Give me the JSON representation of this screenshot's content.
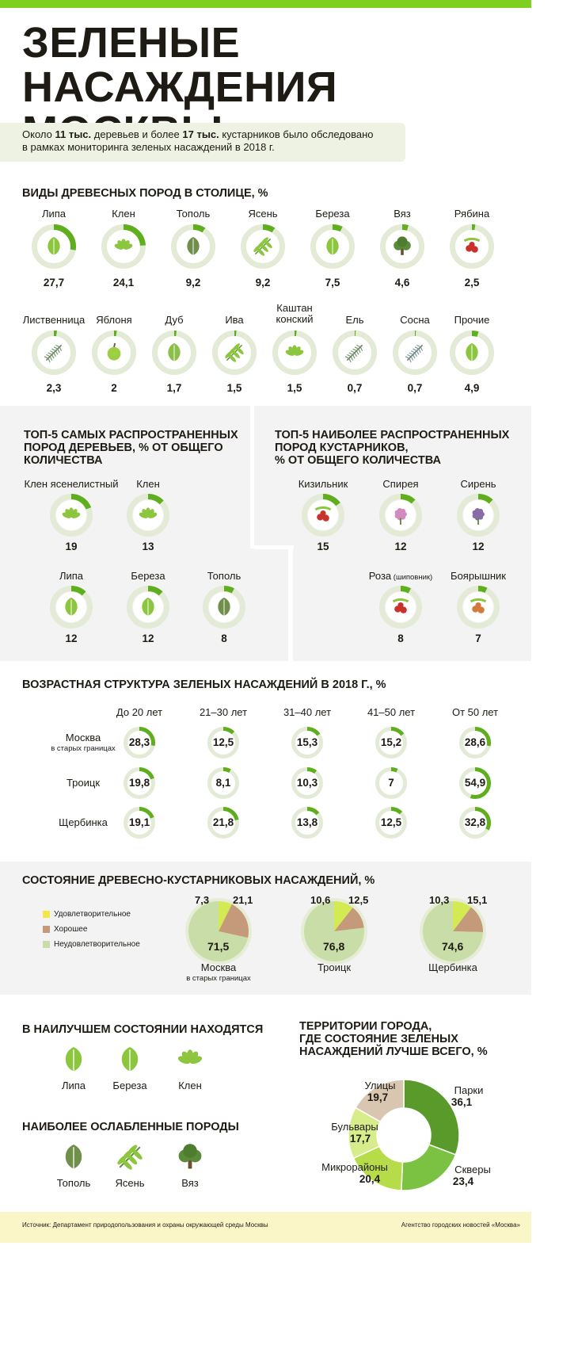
{
  "title": "ЗЕЛЕНЫЕ НАСАЖДЕНИЯ МОСКВЫ",
  "intro": {
    "p1": "Около ",
    "b1": "11 тыс.",
    "p2": " деревьев и более ",
    "b2": "17 тыс.",
    "p3": " кустарников было обследовано",
    "line2": "в рамках мониторинга зеленых насаждений в 2018 г."
  },
  "colors": {
    "accent": "#6fbf1f",
    "ring": "#dfe8cf",
    "leaf": "#8cc63f",
    "dark_leaf": "#5a8a3a",
    "satisfactory": "#d3ea52",
    "good": "#c49a7a",
    "unsat": "#c9dda8"
  },
  "chart_data": [
    {
      "type": "donut",
      "title": "ВИДЫ ДРЕВЕСНЫХ ПОРОД В СТОЛИЦЕ, %",
      "categories": [
        "Липа",
        "Клен",
        "Тополь",
        "Ясень",
        "Береза",
        "Вяз",
        "Рябина",
        "Лиственница",
        "Яблоня",
        "Дуб",
        "Ива",
        "Каштан конский",
        "Ель",
        "Сосна",
        "Прочие"
      ],
      "labels": [
        "Липа",
        "Клен",
        "Тополь",
        "Ясень",
        "Береза",
        "Вяз",
        "Рябина",
        "Лиственница",
        "Яблоня",
        "Дуб",
        "Ива",
        "Каштан\nконский",
        "Ель",
        "Сосна",
        "Прочие"
      ],
      "values": [
        27.7,
        24.1,
        9.2,
        9.2,
        7.5,
        4.6,
        2.5,
        2.3,
        2,
        1.7,
        1.5,
        1.5,
        0.7,
        0.7,
        4.9
      ],
      "value_labels": [
        "27,7",
        "24,1",
        "9,2",
        "9,2",
        "7,5",
        "4,6",
        "2,5",
        "2,3",
        "2",
        "1,7",
        "1,5",
        "1,5",
        "0,7",
        "0,7",
        "4,9"
      ],
      "icons": [
        "linden-leaf-icon",
        "maple-leaf-icon",
        "poplar-leaf-icon",
        "ash-leaf-icon",
        "birch-leaf-icon",
        "elm-tree-icon",
        "rowan-berry-icon",
        "larch-branch-icon",
        "apple-icon",
        "oak-leaf-icon",
        "willow-branch-icon",
        "chestnut-leaf-icon",
        "spruce-branch-icon",
        "pine-branch-icon",
        "other-leaf-icon"
      ]
    },
    {
      "type": "donut",
      "title": "ТОП-5 САМЫХ РАСПРОСТРАНЕННЫХ ПОРОД ДЕРЕВЬЕВ, % ОТ ОБЩЕГО КОЛИЧЕСТВА",
      "title_lines": [
        "ТОП-5 САМЫХ РАСПРОСТРАНЕННЫХ",
        "ПОРОД ДЕРЕВЬЕВ, % ОТ ОБЩЕГО",
        "КОЛИЧЕСТВА"
      ],
      "categories": [
        "Клен ясенелистный",
        "Клен",
        "Липа",
        "Береза",
        "Тополь"
      ],
      "values": [
        19,
        13,
        12,
        12,
        8
      ],
      "value_labels": [
        "19",
        "13",
        "12",
        "12",
        "8"
      ],
      "icons": [
        "boxelder-leaf-icon",
        "maple-leaf-icon",
        "linden-leaf-icon",
        "birch-leaf-icon",
        "poplar-leaf-icon"
      ]
    },
    {
      "type": "donut",
      "title": "ТОП-5 НАИБОЛЕЕ РАСПРОСТРАНЕННЫХ ПОРОД КУСТАРНИКОВ, % ОТ ОБЩЕГО КОЛИЧЕСТВА",
      "title_lines": [
        "ТОП-5 НАИБОЛЕЕ РАСПРОСТРАНЕННЫХ",
        "ПОРОД КУСТАРНИКОВ,",
        "% ОТ ОБЩЕГО КОЛИЧЕСТВА"
      ],
      "categories": [
        "Кизильник",
        "Спирея",
        "Сирень",
        "Роза",
        "Боярышник"
      ],
      "rose_note": "(шиповник)",
      "values": [
        15,
        12,
        12,
        8,
        7
      ],
      "value_labels": [
        "15",
        "12",
        "12",
        "8",
        "7"
      ],
      "icons": [
        "cotoneaster-icon",
        "spirea-icon",
        "lilac-icon",
        "rose-hip-icon",
        "hawthorn-icon"
      ]
    },
    {
      "type": "donut-table",
      "title": "ВОЗРАСТНАЯ СТРУКТУРА ЗЕЛЕНЫХ НАСАЖДЕНИЙ В 2018 Г., %",
      "columns": [
        "До 20 лет",
        "21–30 лет",
        "31–40 лет",
        "41–50 лет",
        "От 50 лет"
      ],
      "rows": [
        {
          "name": "Москва",
          "sub": "в старых границах",
          "values": [
            28.3,
            12.5,
            15.3,
            15.2,
            28.6
          ],
          "value_labels": [
            "28,3",
            "12,5",
            "15,3",
            "15,2",
            "28,6"
          ]
        },
        {
          "name": "Троицк",
          "sub": "",
          "values": [
            19.8,
            8.1,
            10.3,
            7,
            54.9
          ],
          "value_labels": [
            "19,8",
            "8,1",
            "10,3",
            "7",
            "54,9"
          ]
        },
        {
          "name": "Щербинка",
          "sub": "",
          "values": [
            19.1,
            21.8,
            13.8,
            12.5,
            32.8
          ],
          "value_labels": [
            "19,1",
            "21,8",
            "13,8",
            "12,5",
            "32,8"
          ]
        }
      ]
    },
    {
      "type": "pie",
      "title": "СОСТОЯНИЕ ДРЕВЕСНО-КУСТАРНИКОВЫХ НАСАЖДЕНИЙ, %",
      "legend": [
        "Удовлетворительное",
        "Хорошее",
        "Неудовлетворительное"
      ],
      "legend_position": "left",
      "series_order": [
        "satisfactory",
        "good",
        "unsatisfactory"
      ],
      "pies": [
        {
          "name": "Москва",
          "sub": "в старых границах",
          "values": [
            7.3,
            21.1,
            71.5
          ],
          "value_labels": [
            "7,3",
            "21,1",
            "71,5"
          ]
        },
        {
          "name": "Троицк",
          "sub": "",
          "values": [
            10.6,
            12.5,
            76.8
          ],
          "value_labels": [
            "10,6",
            "12,5",
            "76,8"
          ]
        },
        {
          "name": "Щербинка",
          "sub": "",
          "values": [
            10.3,
            15.1,
            74.6
          ],
          "value_labels": [
            "10,3",
            "15,1",
            "74,6"
          ]
        }
      ]
    },
    {
      "type": "donut",
      "title": "ТЕРРИТОРИИ ГОРОДА, ГДЕ СОСТОЯНИЕ ЗЕЛЕНЫХ НАСАЖДЕНИЙ ЛУЧШЕ ВСЕГО, %",
      "title_lines": [
        "ТЕРРИТОРИИ ГОРОДА,",
        "ГДЕ СОСТОЯНИЕ ЗЕЛЕНЫХ",
        "НАСАЖДЕНИЙ ЛУЧШЕ ВСЕГО, %"
      ],
      "categories": [
        "Парки",
        "Скверы",
        "Микрорайоны",
        "Бульвары",
        "Улицы"
      ],
      "values": [
        36.1,
        23.4,
        20.4,
        17.7,
        19.7
      ],
      "value_labels": [
        "36,1",
        "23,4",
        "20,4",
        "17,7",
        "19,7"
      ],
      "colors": [
        "#5a9a2a",
        "#7cc242",
        "#b6dc4a",
        "#d7ec8a",
        "#d9c6b0"
      ]
    }
  ],
  "best": {
    "title": "В НАИЛУЧШЕМ СОСТОЯНИИ НАХОДЯТСЯ",
    "items": [
      "Липа",
      "Береза",
      "Клен"
    ]
  },
  "weak": {
    "title": "НАИБОЛЕЕ ОСЛАБЛЕННЫЕ ПОРОДЫ",
    "items": [
      "Тополь",
      "Ясень",
      "Вяз"
    ]
  },
  "footer": {
    "source": "Источник: Департамент природопользования и охраны окружающей среды Москвы",
    "agency": "Агентство городских новостей «Москва»"
  }
}
